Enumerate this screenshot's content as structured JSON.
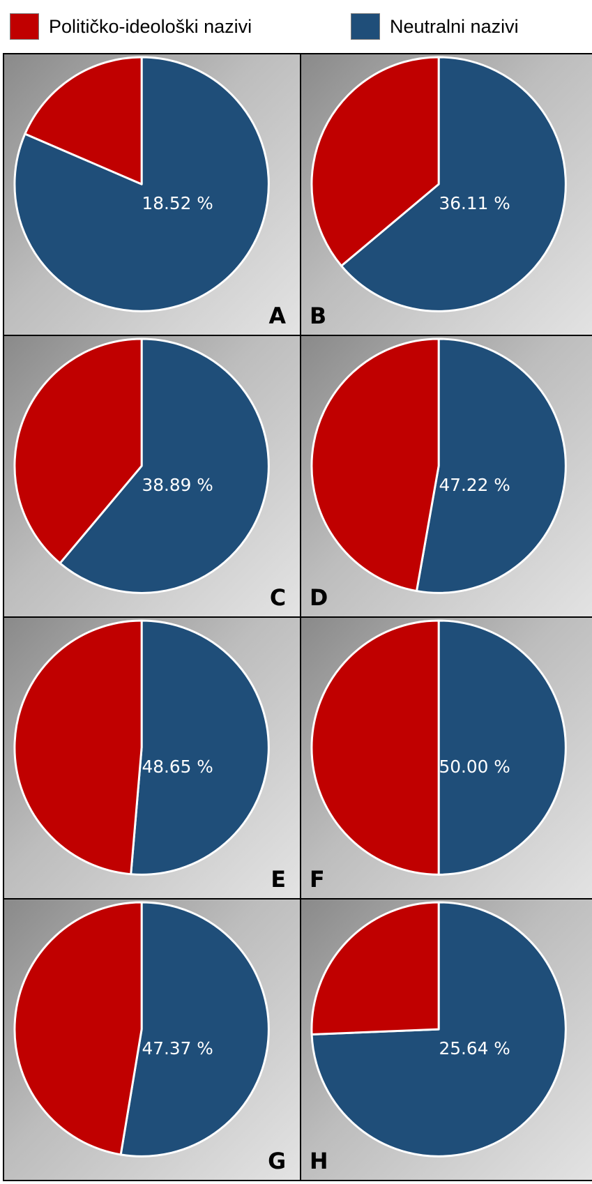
{
  "legend": {
    "political_label": "Političko-ideološki nazivi",
    "neutral_label": "Neutralni nazivi"
  },
  "colors": {
    "political": "#c00000",
    "neutral": "#1f4e79",
    "slice_border": "#ffffff"
  },
  "chart_data": [
    {
      "type": "pie",
      "panel": "A",
      "label": "18.52 %",
      "series": [
        {
          "name": "Političko-ideološki nazivi",
          "value": 18.52
        },
        {
          "name": "Neutralni nazivi",
          "value": 81.48
        }
      ]
    },
    {
      "type": "pie",
      "panel": "B",
      "label": "36.11 %",
      "series": [
        {
          "name": "Političko-ideološki nazivi",
          "value": 36.11
        },
        {
          "name": "Neutralni nazivi",
          "value": 63.89
        }
      ]
    },
    {
      "type": "pie",
      "panel": "C",
      "label": "38.89 %",
      "series": [
        {
          "name": "Političko-ideološki nazivi",
          "value": 38.89
        },
        {
          "name": "Neutralni nazivi",
          "value": 61.11
        }
      ]
    },
    {
      "type": "pie",
      "panel": "D",
      "label": "47.22 %",
      "series": [
        {
          "name": "Političko-ideološki nazivi",
          "value": 47.22
        },
        {
          "name": "Neutralni nazivi",
          "value": 52.78
        }
      ]
    },
    {
      "type": "pie",
      "panel": "E",
      "label": "48.65 %",
      "series": [
        {
          "name": "Političko-ideološki nazivi",
          "value": 48.65
        },
        {
          "name": "Neutralni nazivi",
          "value": 51.35
        }
      ]
    },
    {
      "type": "pie",
      "panel": "F",
      "label": "50.00 %",
      "series": [
        {
          "name": "Političko-ideološki nazivi",
          "value": 50.0
        },
        {
          "name": "Neutralni nazivi",
          "value": 50.0
        }
      ]
    },
    {
      "type": "pie",
      "panel": "G",
      "label": "47.37 %",
      "series": [
        {
          "name": "Političko-ideološki nazivi",
          "value": 47.37
        },
        {
          "name": "Neutralni nazivi",
          "value": 52.63
        }
      ]
    },
    {
      "type": "pie",
      "panel": "H",
      "label": "25.64 %",
      "series": [
        {
          "name": "Političko-ideološki nazivi",
          "value": 25.64
        },
        {
          "name": "Neutralni nazivi",
          "value": 74.36
        }
      ]
    }
  ]
}
